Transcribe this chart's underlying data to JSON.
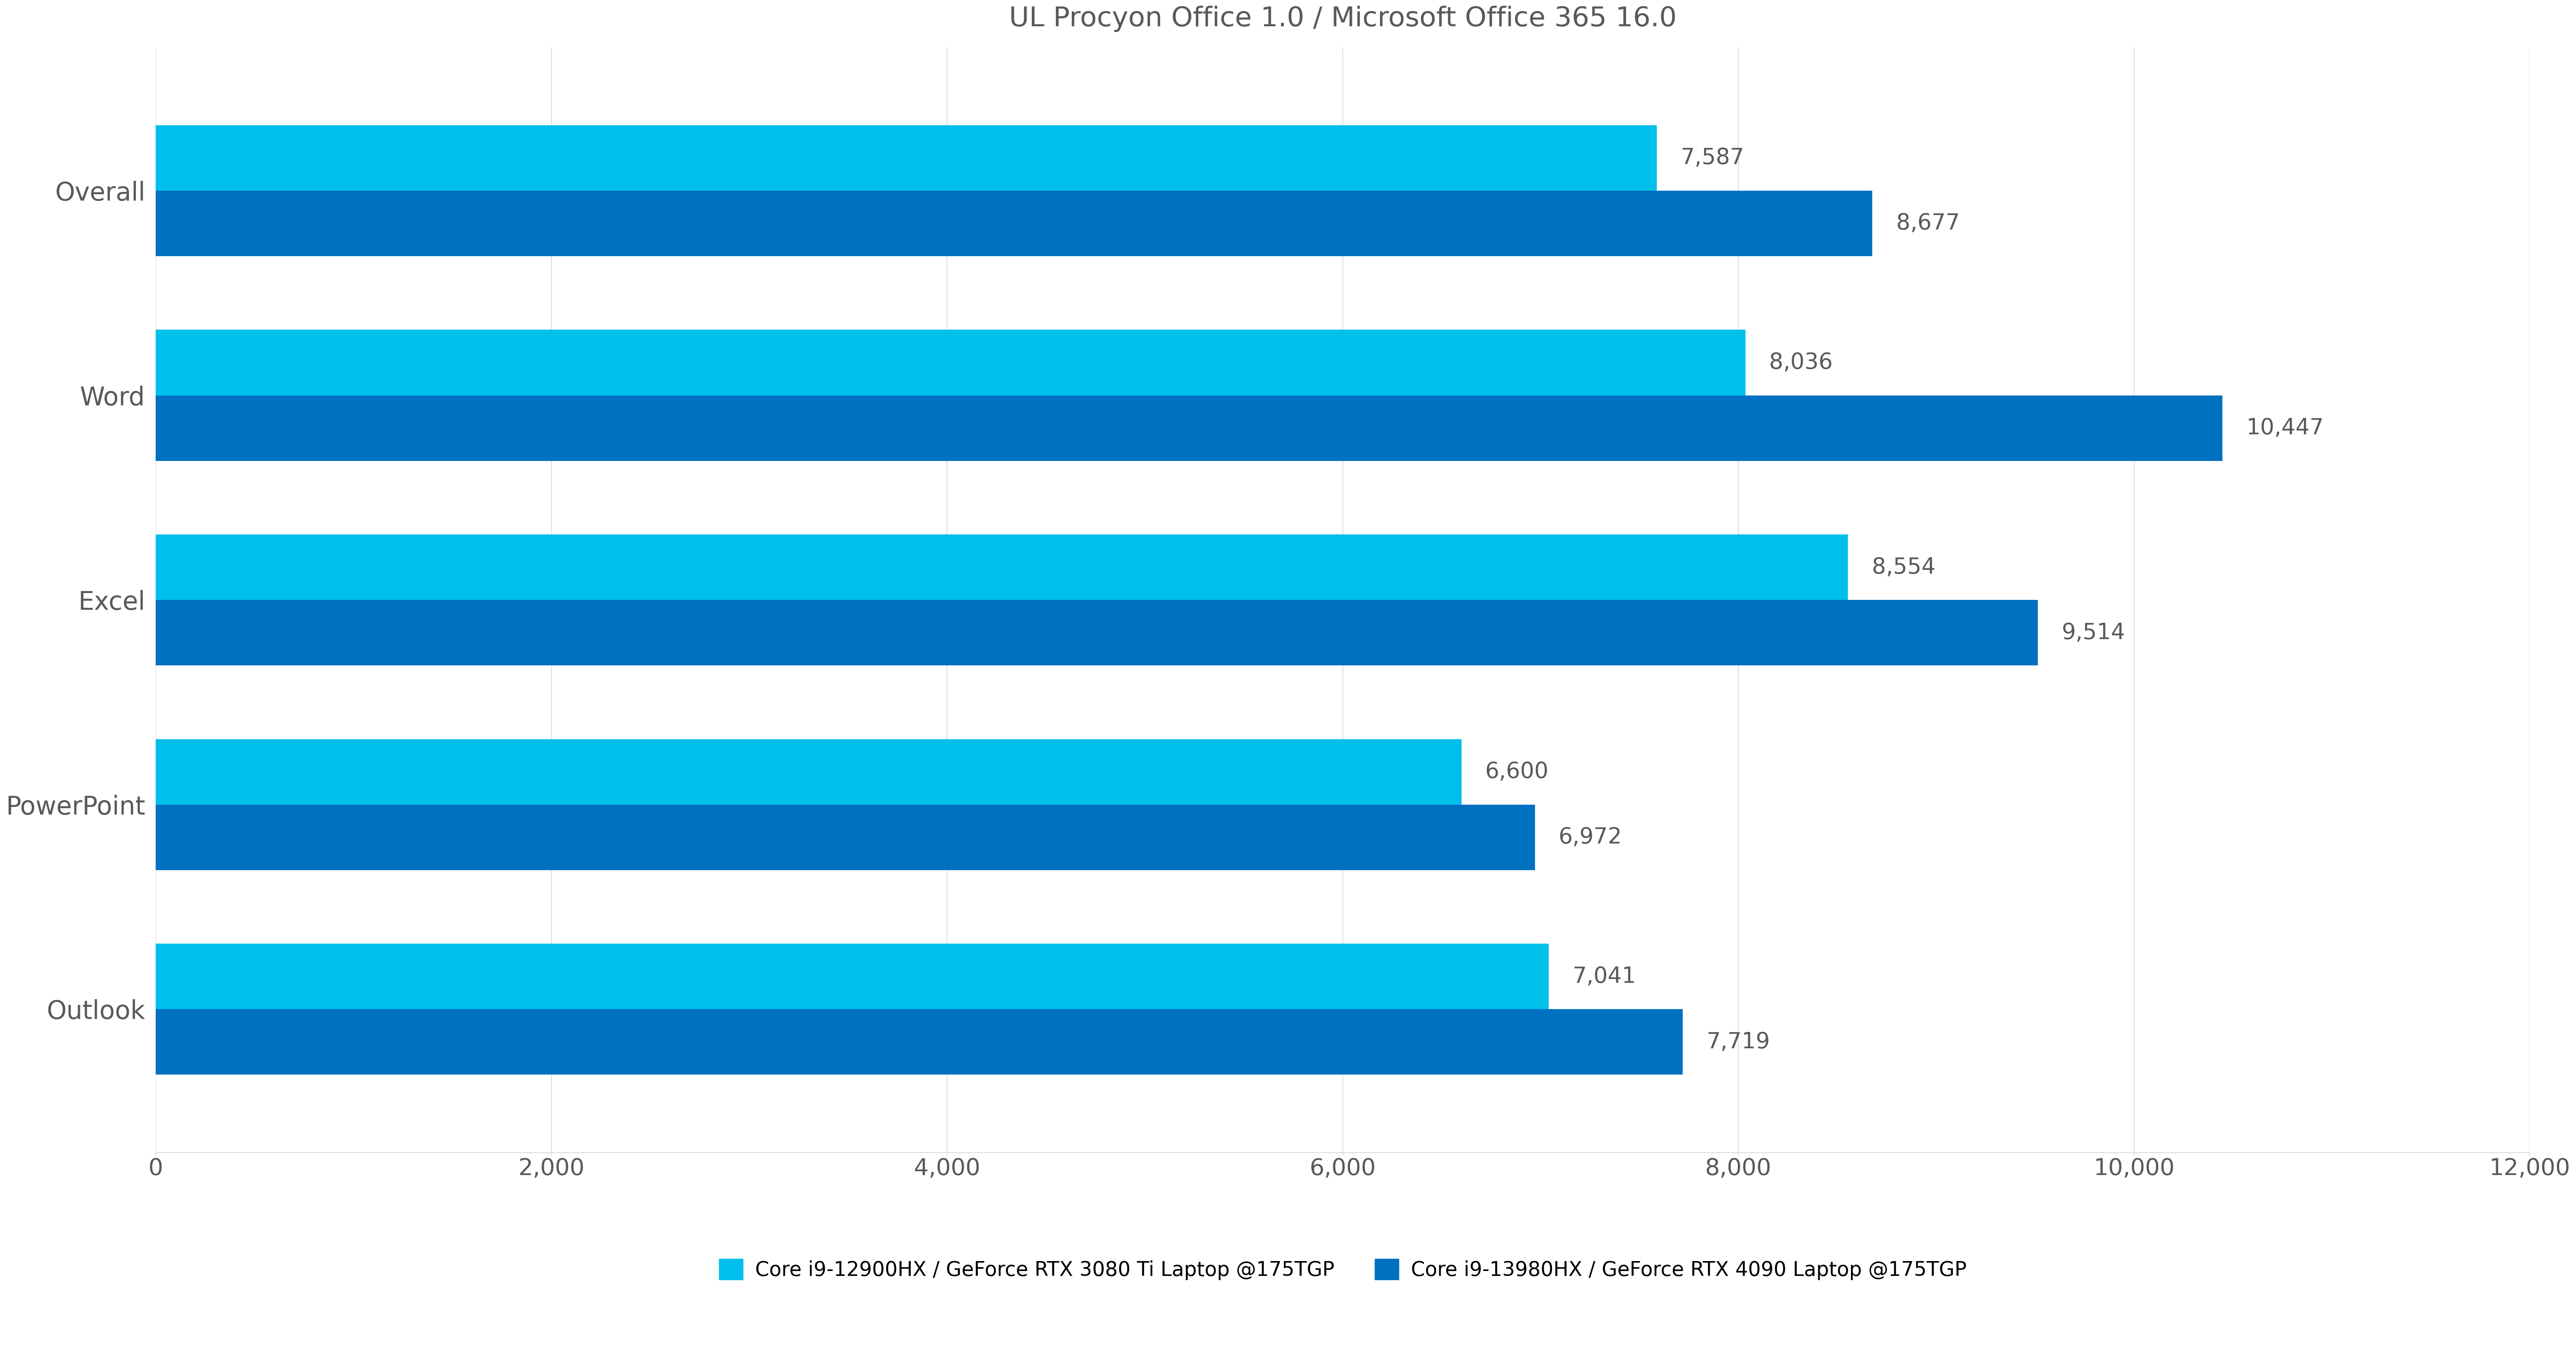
{
  "title": "UL Procyon Office 1.0 / Microsoft Office 365 16.0",
  "categories": [
    "Outlook",
    "PowerPoint",
    "Excel",
    "Word",
    "Overall"
  ],
  "series": [
    {
      "label": "Core i9-12900HX / GeForce RTX 3080 Ti Laptop @175TGP",
      "color": "#00BFEA",
      "values": [
        7041,
        6600,
        8554,
        8036,
        7587
      ]
    },
    {
      "label": "Core i9-13980HX / GeForce RTX 4090 Laptop @175TGP",
      "color": "#0070C0",
      "values": [
        7719,
        6972,
        9514,
        10447,
        8677
      ]
    }
  ],
  "xlim": [
    0,
    12000
  ],
  "xticks": [
    0,
    2000,
    4000,
    6000,
    8000,
    10000,
    12000
  ],
  "xtick_labels": [
    "0",
    "2,000",
    "4,000",
    "6,000",
    "8,000",
    "10,000",
    "12,000"
  ],
  "bar_height": 0.32,
  "background_color": "#ffffff",
  "title_fontsize": 52,
  "label_fontsize": 48,
  "tick_fontsize": 44,
  "annotation_fontsize": 42,
  "legend_fontsize": 38,
  "text_color": "#595959",
  "grid_color": "#d9d9d9",
  "spine_color": "#d9d9d9"
}
